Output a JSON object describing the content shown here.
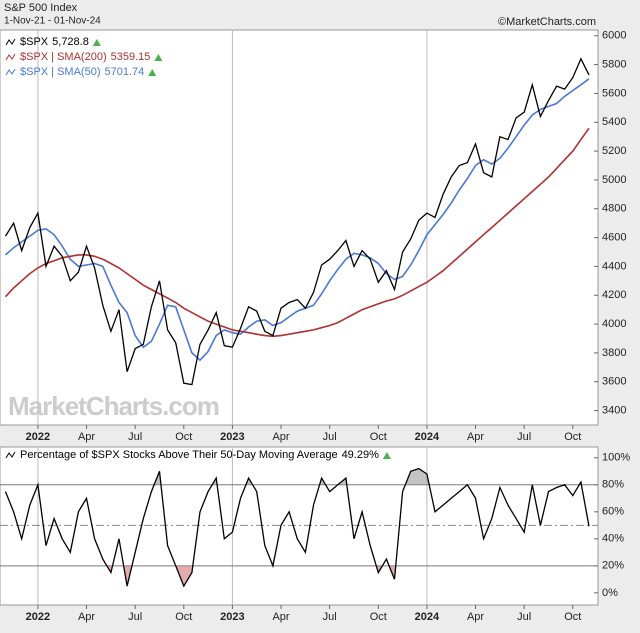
{
  "chart_data": [
    {
      "type": "line",
      "title": "S&P 500 Index",
      "subtitle": "1-Nov-21 - 01-Nov-24",
      "credit": "©MarketCharts.com",
      "watermark": "MarketCharts.com",
      "categories": [
        null,
        null,
        null,
        null,
        "2022",
        null,
        null,
        null,
        null,
        null,
        "Apr",
        null,
        null,
        null,
        null,
        null,
        "Jul",
        null,
        null,
        null,
        null,
        null,
        "Oct",
        null,
        null,
        null,
        null,
        null,
        "2023",
        null,
        null,
        null,
        null,
        null,
        "Apr",
        null,
        null,
        null,
        null,
        null,
        "Jul",
        null,
        null,
        null,
        null,
        null,
        "Oct",
        null,
        null,
        null,
        null,
        null,
        "2024",
        null,
        null,
        null,
        null,
        null,
        "Apr",
        null,
        null,
        null,
        null,
        null,
        "Jul",
        null,
        null,
        null,
        null,
        null,
        "Oct",
        null,
        null
      ],
      "series": [
        {
          "name": "$SPX",
          "color": "#000000",
          "last_label": "5,728.8",
          "values": [
            4610,
            4700,
            4510,
            4670,
            4770,
            4400,
            4540,
            4470,
            4300,
            4360,
            4540,
            4390,
            4130,
            3950,
            4100,
            3670,
            3830,
            3860,
            4120,
            4300,
            3960,
            3870,
            3590,
            3580,
            3860,
            3960,
            4080,
            3850,
            3840,
            3970,
            4120,
            4090,
            3950,
            3920,
            4110,
            4150,
            4170,
            4110,
            4220,
            4410,
            4450,
            4510,
            4580,
            4400,
            4510,
            4450,
            4290,
            4370,
            4240,
            4500,
            4590,
            4720,
            4770,
            4740,
            4900,
            5020,
            5100,
            5120,
            5250,
            5050,
            5020,
            5300,
            5280,
            5430,
            5470,
            5660,
            5440,
            5550,
            5650,
            5630,
            5710,
            5840,
            5728.8
          ]
        },
        {
          "name": "$SPX | SMA(200)",
          "color": "#b03030",
          "values": [
            4190,
            4250,
            4300,
            4350,
            4390,
            4420,
            4440,
            4460,
            4470,
            4480,
            4480,
            4470,
            4450,
            4420,
            4390,
            4350,
            4310,
            4270,
            4240,
            4210,
            4180,
            4150,
            4110,
            4080,
            4050,
            4020,
            4000,
            3980,
            3960,
            3950,
            3940,
            3930,
            3920,
            3915,
            3920,
            3930,
            3940,
            3950,
            3960,
            3975,
            3990,
            4010,
            4040,
            4070,
            4100,
            4120,
            4140,
            4160,
            4175,
            4200,
            4230,
            4260,
            4290,
            4330,
            4370,
            4420,
            4470,
            4520,
            4570,
            4620,
            4670,
            4720,
            4770,
            4820,
            4870,
            4920,
            4970,
            5020,
            5080,
            5140,
            5200,
            5280,
            5359.15
          ]
        },
        {
          "name": "$SPX | SMA(50)",
          "color": "#4a78d8",
          "values": [
            4480,
            4530,
            4570,
            4610,
            4650,
            4660,
            4620,
            4540,
            4450,
            4400,
            4410,
            4420,
            4400,
            4270,
            4150,
            4080,
            3920,
            3840,
            3880,
            4000,
            4130,
            4120,
            3960,
            3800,
            3750,
            3810,
            3920,
            3960,
            3940,
            3930,
            3980,
            4020,
            4030,
            3990,
            4010,
            4050,
            4090,
            4110,
            4130,
            4210,
            4300,
            4380,
            4450,
            4490,
            4480,
            4460,
            4420,
            4350,
            4310,
            4330,
            4410,
            4510,
            4620,
            4690,
            4760,
            4840,
            4930,
            5010,
            5100,
            5140,
            5110,
            5150,
            5220,
            5300,
            5380,
            5450,
            5490,
            5510,
            5530,
            5580,
            5620,
            5660,
            5701.74
          ]
        }
      ],
      "ylim": [
        3300,
        6040
      ],
      "yticks": [
        3400,
        3600,
        3800,
        4000,
        4200,
        4400,
        4600,
        4800,
        5000,
        5200,
        5400,
        5600,
        5800,
        6000
      ],
      "year_grid": true
    },
    {
      "type": "line",
      "categories": [
        null,
        null,
        null,
        null,
        "2022",
        null,
        null,
        null,
        null,
        null,
        "Apr",
        null,
        null,
        null,
        null,
        null,
        "Jul",
        null,
        null,
        null,
        null,
        null,
        "Oct",
        null,
        null,
        null,
        null,
        null,
        "2023",
        null,
        null,
        null,
        null,
        null,
        "Apr",
        null,
        null,
        null,
        null,
        null,
        "Jul",
        null,
        null,
        null,
        null,
        null,
        "Oct",
        null,
        null,
        null,
        null,
        null,
        "2024",
        null,
        null,
        null,
        null,
        null,
        "Apr",
        null,
        null,
        null,
        null,
        null,
        "Jul",
        null,
        null,
        null,
        null,
        null,
        "Oct",
        null,
        null
      ],
      "series": [
        {
          "name": "Percentage of $SPX Stocks Above Their 50-Day Moving Average",
          "color": "#000000",
          "last_label": "49.29%",
          "values": [
            75,
            60,
            40,
            65,
            80,
            35,
            55,
            40,
            30,
            60,
            70,
            40,
            25,
            15,
            40,
            5,
            30,
            55,
            75,
            90,
            35,
            20,
            5,
            15,
            60,
            75,
            85,
            40,
            45,
            70,
            85,
            75,
            35,
            20,
            50,
            60,
            40,
            30,
            65,
            85,
            75,
            80,
            85,
            40,
            60,
            35,
            15,
            25,
            10,
            75,
            90,
            92,
            88,
            60,
            65,
            70,
            75,
            80,
            70,
            40,
            55,
            78,
            65,
            55,
            45,
            80,
            50,
            75,
            78,
            80,
            72,
            82,
            49.29
          ]
        }
      ],
      "ylim": [
        -9,
        108
      ],
      "yticks": [
        {
          "value": 0,
          "label": "0%"
        },
        {
          "value": 20,
          "label": "20%"
        },
        {
          "value": 40,
          "label": "40%"
        },
        {
          "value": 60,
          "label": "60%"
        },
        {
          "value": 80,
          "label": "80%"
        },
        {
          "value": 100,
          "label": "100%"
        }
      ],
      "reference_lines": [
        20,
        50,
        80
      ],
      "year_grid": true
    }
  ]
}
